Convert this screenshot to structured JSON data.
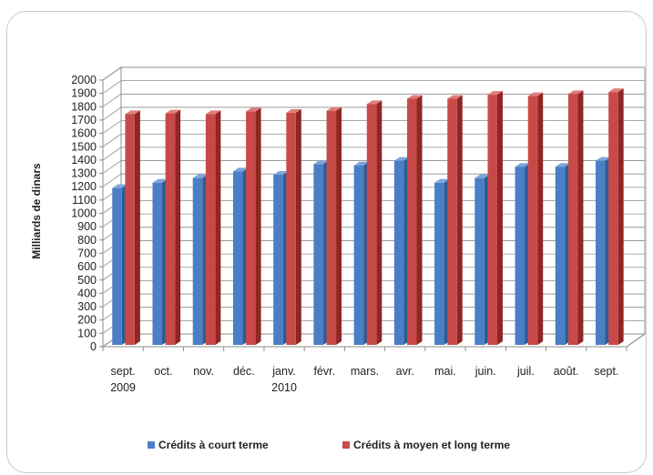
{
  "chart_data": {
    "type": "bar",
    "ylabel": "Milliards de dinars",
    "ylim": [
      0,
      2000
    ],
    "ytick_step": 100,
    "grid": true,
    "legend_position": "bottom",
    "categories": [
      [
        "sept.",
        "2009"
      ],
      [
        "oct."
      ],
      [
        "nov."
      ],
      [
        "déc."
      ],
      [
        "janv.",
        "2010"
      ],
      [
        "févr."
      ],
      [
        "mars."
      ],
      [
        "avr."
      ],
      [
        "mai."
      ],
      [
        "juin."
      ],
      [
        "juil."
      ],
      [
        "août."
      ],
      [
        "sept."
      ]
    ],
    "series": [
      {
        "name": "Crédits à court terme",
        "color": "#4a7ec6",
        "side_color": "#2f5b95",
        "top_color": "#7ea4d9",
        "values": [
          1190,
          1230,
          1265,
          1315,
          1290,
          1370,
          1360,
          1395,
          1230,
          1265,
          1350,
          1350,
          1395
        ]
      },
      {
        "name": "Crédits à moyen et long terme",
        "color": "#c84a48",
        "side_color": "#8e2624",
        "top_color": "#e07d7b",
        "values": [
          1745,
          1750,
          1745,
          1765,
          1755,
          1770,
          1820,
          1860,
          1860,
          1890,
          1880,
          1895,
          1910
        ]
      }
    ]
  }
}
